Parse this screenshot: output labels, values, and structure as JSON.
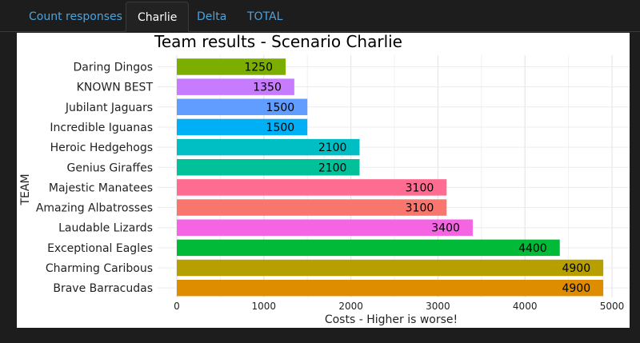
{
  "tabs": [
    {
      "label": "Count responses",
      "active": false
    },
    {
      "label": "Charlie",
      "active": true
    },
    {
      "label": "Delta",
      "active": false
    },
    {
      "label": "TOTAL",
      "active": false
    }
  ],
  "chart_data": {
    "type": "bar",
    "orientation": "horizontal",
    "title": "Team results - Scenario Charlie",
    "xlabel": "Costs - Higher is worse!",
    "ylabel": "TEAM",
    "xlim": [
      0,
      5100
    ],
    "xticks": [
      0,
      1000,
      2000,
      3000,
      4000,
      5000
    ],
    "grid": true,
    "legend": "none",
    "categories": [
      "Daring Dingos",
      "KNOWN BEST",
      "Jubilant Jaguars",
      "Incredible Iguanas",
      "Heroic Hedgehogs",
      "Genius Giraffes",
      "Majestic Manatees",
      "Amazing Albatrosses",
      "Laudable Lizards",
      "Exceptional Eagles",
      "Charming Caribous",
      "Brave Barracudas"
    ],
    "values": [
      1250,
      1350,
      1500,
      1500,
      2100,
      2100,
      3100,
      3100,
      3400,
      4400,
      4900,
      4900
    ],
    "colors": [
      "#7CAE00",
      "#C77CFF",
      "#619CFF",
      "#00B0F6",
      "#00BFC4",
      "#00C19A",
      "#FF6C91",
      "#F8766D",
      "#F564E3",
      "#00BA38",
      "#B79F00",
      "#DE8C00"
    ]
  }
}
